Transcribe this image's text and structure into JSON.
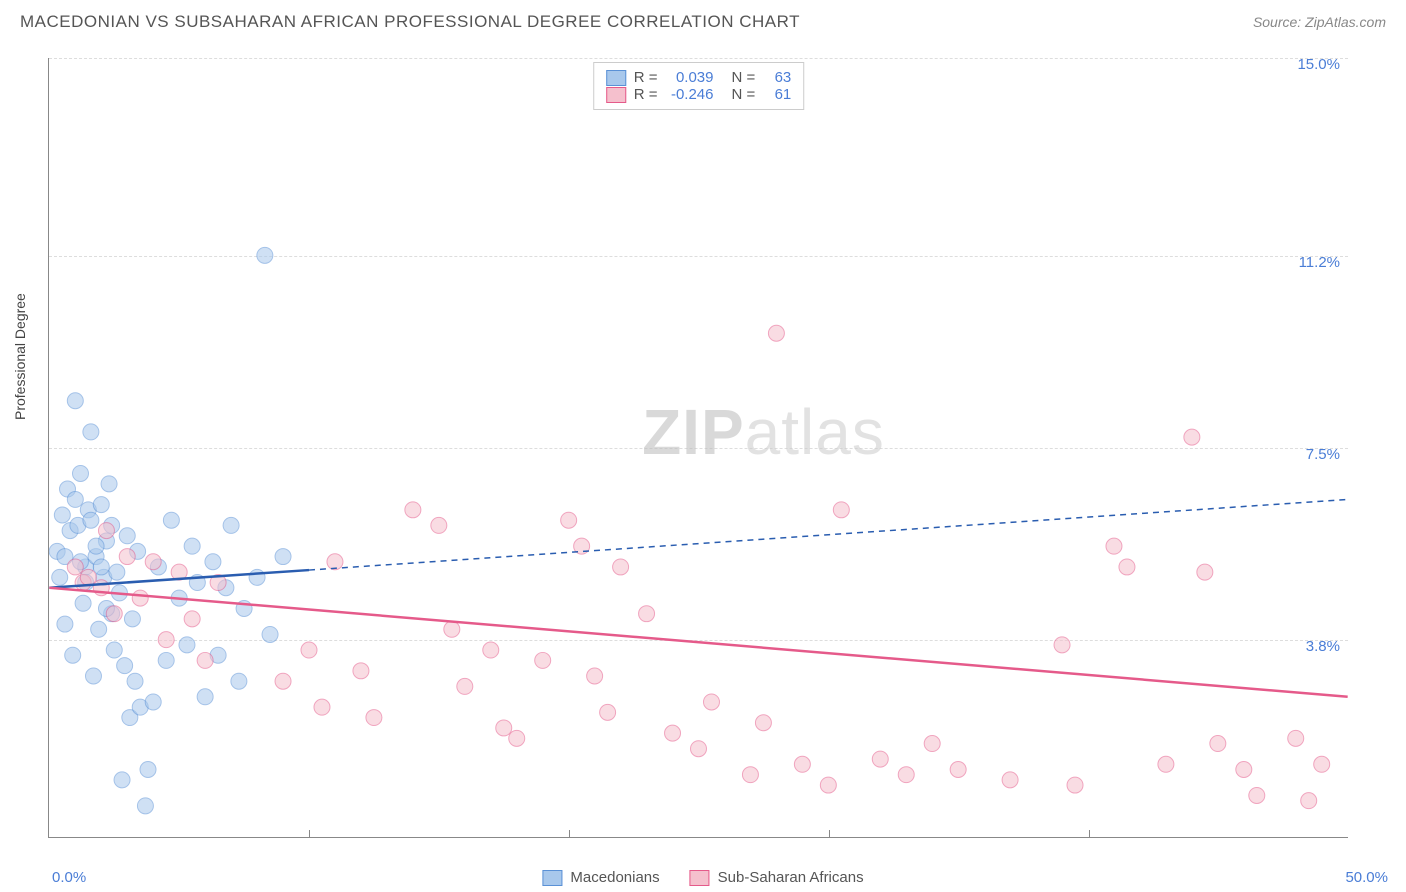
{
  "header": {
    "title": "MACEDONIAN VS SUBSAHARAN AFRICAN PROFESSIONAL DEGREE CORRELATION CHART",
    "source": "Source: ZipAtlas.com"
  },
  "ylabel": "Professional Degree",
  "watermark_a": "ZIP",
  "watermark_b": "atlas",
  "chart": {
    "type": "scatter",
    "xlim": [
      0,
      50
    ],
    "ylim": [
      0,
      15
    ],
    "x_ticks": [
      0,
      10,
      20,
      30,
      40,
      50
    ],
    "y_ticks": [
      3.8,
      7.5,
      11.2,
      15.0
    ],
    "x_tick_labels": [
      "0.0%",
      "",
      "",
      "",
      "",
      "50.0%"
    ],
    "y_tick_labels": [
      "3.8%",
      "7.5%",
      "11.2%",
      "15.0%"
    ],
    "background_color": "#ffffff",
    "grid_color": "#dddddd",
    "axis_color": "#888888",
    "tick_label_color": "#4a7dd6",
    "marker_radius": 8,
    "marker_opacity": 0.55,
    "series": [
      {
        "name": "Macedonians",
        "color_fill": "#a8c8ec",
        "color_stroke": "#5a91d6",
        "r_label": "R =",
        "r_value": "0.039",
        "n_label": "N =",
        "n_value": "63",
        "trend": {
          "x1": 0,
          "y1": 4.8,
          "x2": 50,
          "y2": 6.5,
          "solid_until_x": 10,
          "stroke": "#2a5db0",
          "width": 2.5
        },
        "points": [
          [
            0.3,
            5.5
          ],
          [
            0.5,
            6.2
          ],
          [
            0.6,
            4.1
          ],
          [
            0.7,
            6.7
          ],
          [
            0.8,
            5.9
          ],
          [
            0.9,
            3.5
          ],
          [
            1.0,
            8.4
          ],
          [
            1.1,
            6.0
          ],
          [
            1.2,
            7.0
          ],
          [
            1.3,
            4.5
          ],
          [
            1.4,
            5.2
          ],
          [
            1.5,
            6.3
          ],
          [
            1.6,
            7.8
          ],
          [
            1.7,
            3.1
          ],
          [
            1.8,
            5.4
          ],
          [
            1.9,
            4.0
          ],
          [
            2.0,
            6.4
          ],
          [
            2.1,
            5.0
          ],
          [
            2.2,
            5.7
          ],
          [
            2.3,
            6.8
          ],
          [
            2.4,
            4.3
          ],
          [
            2.5,
            3.6
          ],
          [
            2.6,
            5.1
          ],
          [
            2.7,
            4.7
          ],
          [
            2.8,
            1.1
          ],
          [
            2.9,
            3.3
          ],
          [
            3.0,
            5.8
          ],
          [
            3.1,
            2.3
          ],
          [
            3.2,
            4.2
          ],
          [
            3.3,
            3.0
          ],
          [
            3.4,
            5.5
          ],
          [
            3.5,
            2.5
          ],
          [
            3.7,
            0.6
          ],
          [
            3.8,
            1.3
          ],
          [
            4.0,
            2.6
          ],
          [
            4.2,
            5.2
          ],
          [
            4.5,
            3.4
          ],
          [
            4.7,
            6.1
          ],
          [
            5.0,
            4.6
          ],
          [
            5.3,
            3.7
          ],
          [
            5.5,
            5.6
          ],
          [
            5.7,
            4.9
          ],
          [
            6.0,
            2.7
          ],
          [
            6.3,
            5.3
          ],
          [
            6.5,
            3.5
          ],
          [
            6.8,
            4.8
          ],
          [
            7.0,
            6.0
          ],
          [
            7.3,
            3.0
          ],
          [
            7.5,
            4.4
          ],
          [
            8.0,
            5.0
          ],
          [
            8.3,
            11.2
          ],
          [
            8.5,
            3.9
          ],
          [
            9.0,
            5.4
          ],
          [
            1.0,
            6.5
          ],
          [
            1.2,
            5.3
          ],
          [
            1.4,
            4.9
          ],
          [
            1.6,
            6.1
          ],
          [
            1.8,
            5.6
          ],
          [
            2.0,
            5.2
          ],
          [
            2.2,
            4.4
          ],
          [
            2.4,
            6.0
          ],
          [
            0.4,
            5.0
          ],
          [
            0.6,
            5.4
          ]
        ]
      },
      {
        "name": "Sub-Saharan Africans",
        "color_fill": "#f5c0cd",
        "color_stroke": "#e55a8a",
        "r_label": "R =",
        "r_value": "-0.246",
        "n_label": "N =",
        "n_value": "61",
        "trend": {
          "x1": 0,
          "y1": 4.8,
          "x2": 50,
          "y2": 2.7,
          "solid_until_x": 50,
          "stroke": "#e55a8a",
          "width": 2.5
        },
        "points": [
          [
            1.0,
            5.2
          ],
          [
            1.3,
            4.9
          ],
          [
            1.5,
            5.0
          ],
          [
            2.0,
            4.8
          ],
          [
            2.2,
            5.9
          ],
          [
            2.5,
            4.3
          ],
          [
            3.0,
            5.4
          ],
          [
            3.5,
            4.6
          ],
          [
            4.0,
            5.3
          ],
          [
            4.5,
            3.8
          ],
          [
            5.0,
            5.1
          ],
          [
            5.5,
            4.2
          ],
          [
            6.0,
            3.4
          ],
          [
            6.5,
            4.9
          ],
          [
            9.0,
            3.0
          ],
          [
            10.0,
            3.6
          ],
          [
            10.5,
            2.5
          ],
          [
            11.0,
            5.3
          ],
          [
            12.0,
            3.2
          ],
          [
            12.5,
            2.3
          ],
          [
            14.0,
            6.3
          ],
          [
            15.0,
            6.0
          ],
          [
            15.5,
            4.0
          ],
          [
            16.0,
            2.9
          ],
          [
            17.0,
            3.6
          ],
          [
            17.5,
            2.1
          ],
          [
            18.0,
            1.9
          ],
          [
            19.0,
            3.4
          ],
          [
            20.0,
            6.1
          ],
          [
            20.5,
            5.6
          ],
          [
            21.0,
            3.1
          ],
          [
            21.5,
            2.4
          ],
          [
            22.0,
            5.2
          ],
          [
            23.0,
            4.3
          ],
          [
            24.0,
            2.0
          ],
          [
            25.0,
            1.7
          ],
          [
            25.5,
            2.6
          ],
          [
            27.0,
            1.2
          ],
          [
            27.5,
            2.2
          ],
          [
            28.0,
            9.7
          ],
          [
            29.0,
            1.4
          ],
          [
            30.0,
            1.0
          ],
          [
            30.5,
            6.3
          ],
          [
            32.0,
            1.5
          ],
          [
            33.0,
            1.2
          ],
          [
            34.0,
            1.8
          ],
          [
            35.0,
            1.3
          ],
          [
            37.0,
            1.1
          ],
          [
            39.0,
            3.7
          ],
          [
            39.5,
            1.0
          ],
          [
            41.0,
            5.6
          ],
          [
            41.5,
            5.2
          ],
          [
            43.0,
            1.4
          ],
          [
            44.0,
            7.7
          ],
          [
            44.5,
            5.1
          ],
          [
            45.0,
            1.8
          ],
          [
            46.0,
            1.3
          ],
          [
            46.5,
            0.8
          ],
          [
            48.0,
            1.9
          ],
          [
            49.0,
            1.4
          ],
          [
            48.5,
            0.7
          ]
        ]
      }
    ],
    "bottom_legend": [
      {
        "label": "Macedonians",
        "fill": "#a8c8ec",
        "stroke": "#5a91d6"
      },
      {
        "label": "Sub-Saharan Africans",
        "fill": "#f5c0cd",
        "stroke": "#e55a8a"
      }
    ]
  }
}
